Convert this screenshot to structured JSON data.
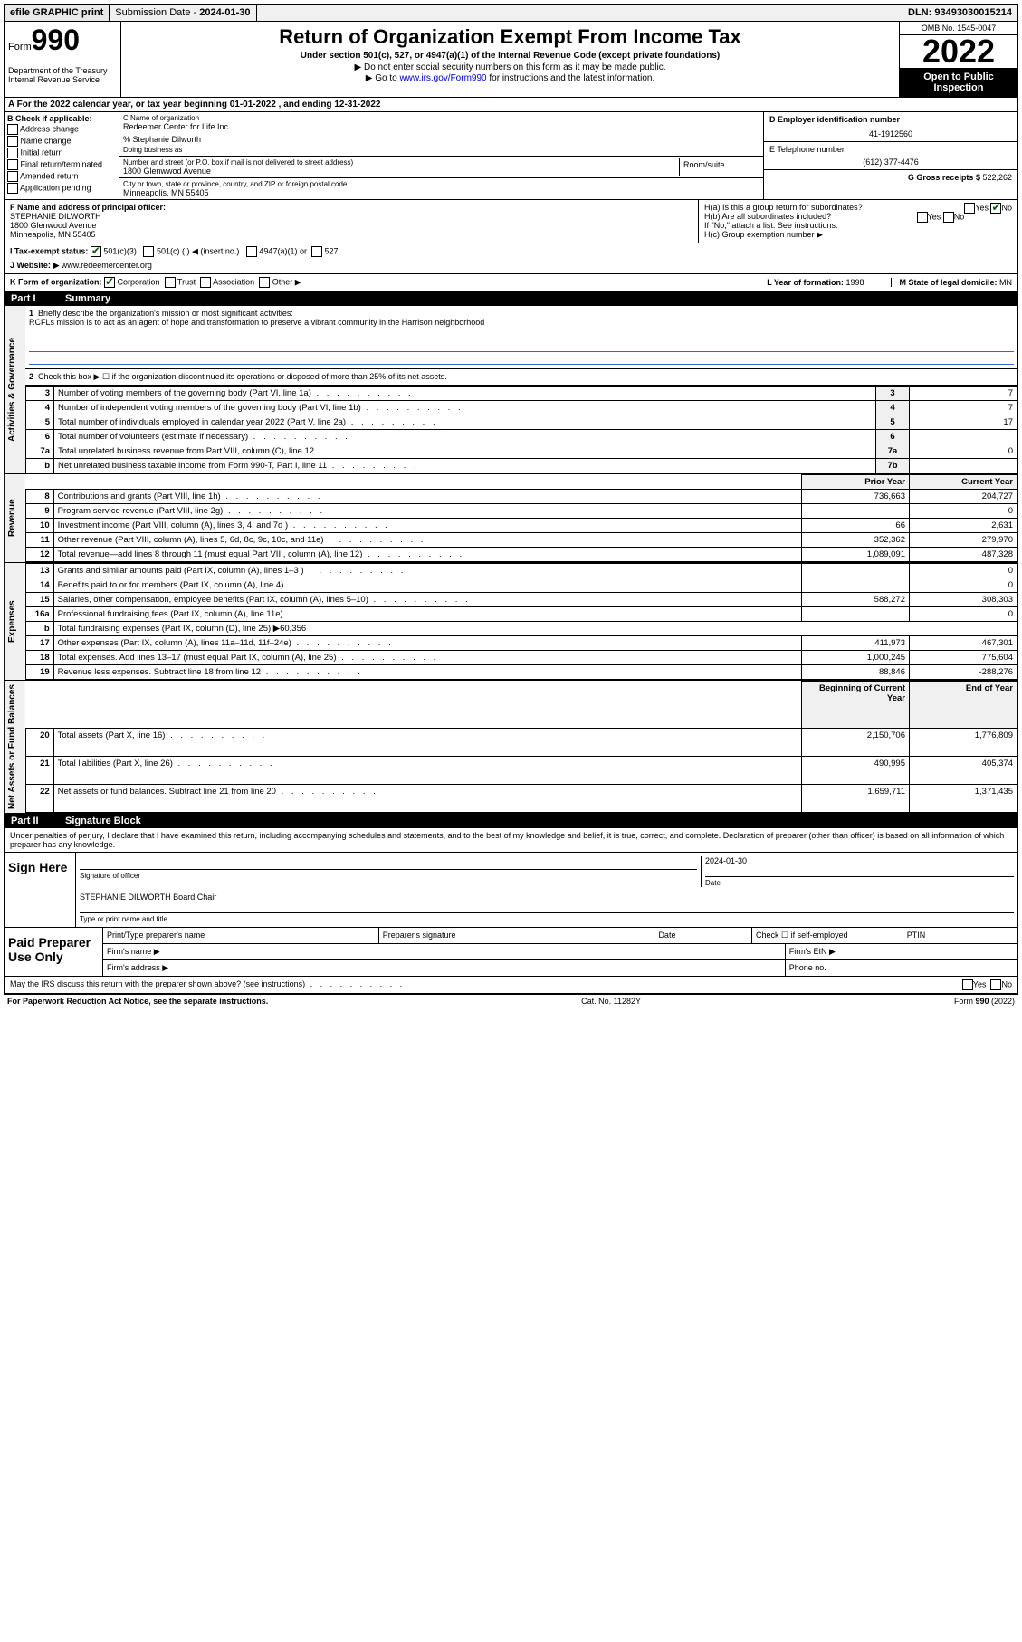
{
  "top_bar": {
    "efile": "efile GRAPHIC print",
    "submission_label": "Submission Date - ",
    "submission_date": "2024-01-30",
    "dln_label": "DLN: ",
    "dln": "93493030015214"
  },
  "header": {
    "form_label": "Form",
    "form_num": "990",
    "dept": "Department of the Treasury\nInternal Revenue Service",
    "title": "Return of Organization Exempt From Income Tax",
    "subtitle": "Under section 501(c), 527, or 4947(a)(1) of the Internal Revenue Code (except private foundations)",
    "line1": "▶ Do not enter social security numbers on this form as it may be made public.",
    "line2_pre": "▶ Go to ",
    "line2_link": "www.irs.gov/Form990",
    "line2_post": " for instructions and the latest information.",
    "omb": "OMB No. 1545-0047",
    "year": "2022",
    "open_public": "Open to Public Inspection"
  },
  "row_a": "A For the 2022 calendar year, or tax year beginning 01-01-2022    , and ending 12-31-2022",
  "col_b": {
    "header": "B Check if applicable:",
    "opts": [
      "Address change",
      "Name change",
      "Initial return",
      "Final return/terminated",
      "Amended return",
      "Application pending"
    ]
  },
  "col_c": {
    "name_label": "C Name of organization",
    "name": "Redeemer Center for Life Inc",
    "care_of": "% Stephanie Dilworth",
    "dba_label": "Doing business as",
    "addr_label": "Number and street (or P.O. box if mail is not delivered to street address)",
    "addr": "1800 Glenwwod Avenue",
    "room": "Room/suite",
    "city_label": "City or town, state or province, country, and ZIP or foreign postal code",
    "city": "Minneapolis, MN  55405"
  },
  "col_d": {
    "label": "D Employer identification number",
    "ein": "41-1912560"
  },
  "col_e": {
    "label": "E Telephone number",
    "phone": "(612) 377-4476"
  },
  "col_g": {
    "label": "G Gross receipts $ ",
    "val": "522,262"
  },
  "col_f": {
    "label": "F Name and address of principal officer:",
    "name": "STEPHANIE DILWORTH",
    "addr1": "1800 Glenwood Avenue",
    "addr2": "Minneapolis, MN  55405"
  },
  "col_h": {
    "ha": "H(a)  Is this a group return for subordinates?",
    "ha_ans": "No",
    "hb": "H(b)  Are all subordinates included?",
    "hb_note": "If \"No,\" attach a list. See instructions.",
    "hc": "H(c)  Group exemption number ▶"
  },
  "row_i": {
    "label": "I  Tax-exempt status:",
    "opt1": "501(c)(3)",
    "opt2": "501(c) (   ) ◀ (insert no.)",
    "opt3": "4947(a)(1) or",
    "opt4": "527"
  },
  "row_j": {
    "label": "J  Website: ▶ ",
    "val": "www.redeemercenter.org"
  },
  "row_k": {
    "label": "K Form of organization:",
    "opts": [
      "Corporation",
      "Trust",
      "Association",
      "Other ▶"
    ],
    "l": "L Year of formation: ",
    "l_val": "1998",
    "m": "M State of legal domicile: ",
    "m_val": "MN"
  },
  "part1": {
    "label": "Part I",
    "title": "Summary",
    "vert1": "Activities & Governance",
    "vert2": "Revenue",
    "vert3": "Expenses",
    "vert4": "Net Assets or Fund Balances",
    "line1_label": "Briefly describe the organization's mission or most significant activities:",
    "line1_text": "RCFLs mission is to act as an agent of hope and transformation to preserve a vibrant community in the Harrison neighborhood",
    "line2": "Check this box ▶ ☐  if the organization discontinued its operations or disposed of more than 25% of its net assets.",
    "rows_gov": [
      {
        "n": "3",
        "desc": "Number of voting members of the governing body (Part VI, line 1a)",
        "box": "3",
        "val": "7"
      },
      {
        "n": "4",
        "desc": "Number of independent voting members of the governing body (Part VI, line 1b)",
        "box": "4",
        "val": "7"
      },
      {
        "n": "5",
        "desc": "Total number of individuals employed in calendar year 2022 (Part V, line 2a)",
        "box": "5",
        "val": "17"
      },
      {
        "n": "6",
        "desc": "Total number of volunteers (estimate if necessary)",
        "box": "6",
        "val": ""
      },
      {
        "n": "7a",
        "desc": "Total unrelated business revenue from Part VIII, column (C), line 12",
        "box": "7a",
        "val": "0"
      },
      {
        "n": "b",
        "desc": "Net unrelated business taxable income from Form 990-T, Part I, line 11",
        "box": "7b",
        "val": ""
      }
    ],
    "col_prior": "Prior Year",
    "col_current": "Current Year",
    "rows_rev": [
      {
        "n": "8",
        "desc": "Contributions and grants (Part VIII, line 1h)",
        "p": "736,663",
        "c": "204,727"
      },
      {
        "n": "9",
        "desc": "Program service revenue (Part VIII, line 2g)",
        "p": "",
        "c": "0"
      },
      {
        "n": "10",
        "desc": "Investment income (Part VIII, column (A), lines 3, 4, and 7d )",
        "p": "66",
        "c": "2,631"
      },
      {
        "n": "11",
        "desc": "Other revenue (Part VIII, column (A), lines 5, 6d, 8c, 9c, 10c, and 11e)",
        "p": "352,362",
        "c": "279,970"
      },
      {
        "n": "12",
        "desc": "Total revenue—add lines 8 through 11 (must equal Part VIII, column (A), line 12)",
        "p": "1,089,091",
        "c": "487,328"
      }
    ],
    "rows_exp": [
      {
        "n": "13",
        "desc": "Grants and similar amounts paid (Part IX, column (A), lines 1–3 )",
        "p": "",
        "c": "0"
      },
      {
        "n": "14",
        "desc": "Benefits paid to or for members (Part IX, column (A), line 4)",
        "p": "",
        "c": "0"
      },
      {
        "n": "15",
        "desc": "Salaries, other compensation, employee benefits (Part IX, column (A), lines 5–10)",
        "p": "588,272",
        "c": "308,303"
      },
      {
        "n": "16a",
        "desc": "Professional fundraising fees (Part IX, column (A), line 11e)",
        "p": "",
        "c": "0"
      },
      {
        "n": "b",
        "desc": "Total fundraising expenses (Part IX, column (D), line 25) ▶60,356",
        "p": "—",
        "c": "—"
      },
      {
        "n": "17",
        "desc": "Other expenses (Part IX, column (A), lines 11a–11d, 11f–24e)",
        "p": "411,973",
        "c": "467,301"
      },
      {
        "n": "18",
        "desc": "Total expenses. Add lines 13–17 (must equal Part IX, column (A), line 25)",
        "p": "1,000,245",
        "c": "775,604"
      },
      {
        "n": "19",
        "desc": "Revenue less expenses. Subtract line 18 from line 12",
        "p": "88,846",
        "c": "-288,276"
      }
    ],
    "col_begin": "Beginning of Current Year",
    "col_end": "End of Year",
    "rows_net": [
      {
        "n": "20",
        "desc": "Total assets (Part X, line 16)",
        "p": "2,150,706",
        "c": "1,776,809"
      },
      {
        "n": "21",
        "desc": "Total liabilities (Part X, line 26)",
        "p": "490,995",
        "c": "405,374"
      },
      {
        "n": "22",
        "desc": "Net assets or fund balances. Subtract line 21 from line 20",
        "p": "1,659,711",
        "c": "1,371,435"
      }
    ]
  },
  "part2": {
    "label": "Part II",
    "title": "Signature Block",
    "declaration": "Under penalties of perjury, I declare that I have examined this return, including accompanying schedules and statements, and to the best of my knowledge and belief, it is true, correct, and complete. Declaration of preparer (other than officer) is based on all information of which preparer has any knowledge.",
    "sign_here": "Sign Here",
    "sig_officer": "Signature of officer",
    "sig_date": "2024-01-30",
    "date_label": "Date",
    "officer_name": "STEPHANIE DILWORTH  Board Chair",
    "name_title_label": "Type or print name and title",
    "paid_label": "Paid Preparer Use Only",
    "pp_name": "Print/Type preparer's name",
    "pp_sig": "Preparer's signature",
    "pp_date": "Date",
    "pp_check": "Check ☐ if self-employed",
    "pp_ptin": "PTIN",
    "firm_name": "Firm's name   ▶",
    "firm_ein": "Firm's EIN ▶",
    "firm_addr": "Firm's address ▶",
    "phone": "Phone no.",
    "may_irs": "May the IRS discuss this return with the preparer shown above? (see instructions)",
    "footer_left": "For Paperwork Reduction Act Notice, see the separate instructions.",
    "footer_mid": "Cat. No. 11282Y",
    "footer_right": "Form 990 (2022)"
  }
}
